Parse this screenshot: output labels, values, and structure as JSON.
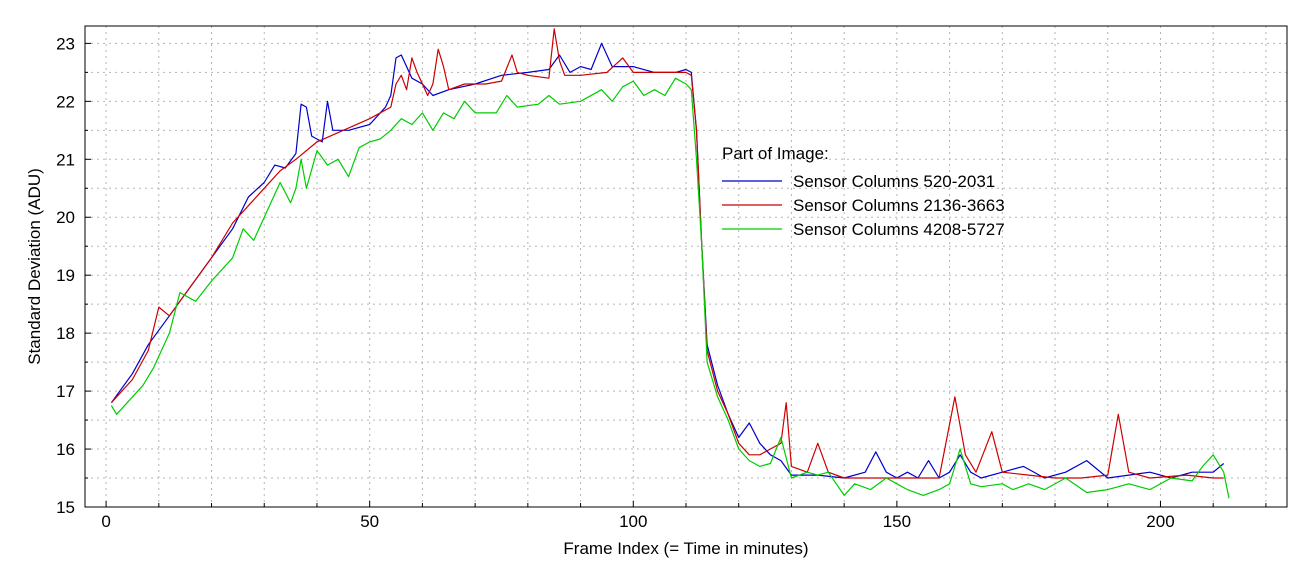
{
  "chart_data": {
    "type": "line",
    "title": "",
    "xlabel": "Frame Index (= Time in minutes)",
    "ylabel": "Standard Deviation (ADU)",
    "xlim": [
      -4,
      224
    ],
    "ylim": [
      15,
      23.3
    ],
    "xticks": [
      0,
      50,
      100,
      150,
      200
    ],
    "yticks": [
      15,
      16,
      17,
      18,
      19,
      20,
      21,
      22,
      23
    ],
    "grid": true,
    "legend": {
      "title": "Part of Image:",
      "placement": "center-right"
    },
    "series": [
      {
        "name": "Sensor Columns 520-2031",
        "color": "#0000cc",
        "points": [
          [
            1,
            16.8
          ],
          [
            5,
            17.3
          ],
          [
            8,
            17.8
          ],
          [
            12,
            18.3
          ],
          [
            16,
            18.8
          ],
          [
            20,
            19.3
          ],
          [
            24,
            19.8
          ],
          [
            27,
            20.35
          ],
          [
            30,
            20.6
          ],
          [
            32,
            20.9
          ],
          [
            34,
            20.85
          ],
          [
            36,
            21.1
          ],
          [
            37,
            21.95
          ],
          [
            38,
            21.9
          ],
          [
            39,
            21.4
          ],
          [
            41,
            21.3
          ],
          [
            42,
            22.0
          ],
          [
            43,
            21.5
          ],
          [
            46,
            21.5
          ],
          [
            50,
            21.6
          ],
          [
            53,
            21.9
          ],
          [
            54,
            22.1
          ],
          [
            55,
            22.75
          ],
          [
            56,
            22.8
          ],
          [
            58,
            22.4
          ],
          [
            60,
            22.3
          ],
          [
            62,
            22.1
          ],
          [
            65,
            22.2
          ],
          [
            70,
            22.3
          ],
          [
            75,
            22.45
          ],
          [
            80,
            22.5
          ],
          [
            84,
            22.55
          ],
          [
            86,
            22.8
          ],
          [
            88,
            22.5
          ],
          [
            90,
            22.6
          ],
          [
            92,
            22.55
          ],
          [
            94,
            23.0
          ],
          [
            96,
            22.6
          ],
          [
            100,
            22.6
          ],
          [
            104,
            22.5
          ],
          [
            108,
            22.5
          ],
          [
            110,
            22.55
          ],
          [
            111,
            22.5
          ],
          [
            112,
            21.5
          ],
          [
            113,
            19.5
          ],
          [
            114,
            17.8
          ],
          [
            116,
            17.1
          ],
          [
            118,
            16.6
          ],
          [
            120,
            16.2
          ],
          [
            122,
            16.45
          ],
          [
            124,
            16.1
          ],
          [
            126,
            15.9
          ],
          [
            128,
            15.8
          ],
          [
            130,
            15.55
          ],
          [
            135,
            15.55
          ],
          [
            140,
            15.5
          ],
          [
            144,
            15.6
          ],
          [
            146,
            15.95
          ],
          [
            148,
            15.6
          ],
          [
            150,
            15.5
          ],
          [
            152,
            15.6
          ],
          [
            154,
            15.5
          ],
          [
            156,
            15.8
          ],
          [
            158,
            15.5
          ],
          [
            160,
            15.6
          ],
          [
            162,
            15.9
          ],
          [
            164,
            15.6
          ],
          [
            166,
            15.5
          ],
          [
            170,
            15.6
          ],
          [
            174,
            15.7
          ],
          [
            178,
            15.5
          ],
          [
            182,
            15.6
          ],
          [
            186,
            15.8
          ],
          [
            190,
            15.5
          ],
          [
            194,
            15.55
          ],
          [
            198,
            15.6
          ],
          [
            202,
            15.5
          ],
          [
            206,
            15.6
          ],
          [
            210,
            15.6
          ],
          [
            212,
            15.75
          ]
        ]
      },
      {
        "name": "Sensor Columns 2136-3663",
        "color": "#cc0000",
        "points": [
          [
            1,
            16.8
          ],
          [
            5,
            17.2
          ],
          [
            8,
            17.7
          ],
          [
            10,
            18.45
          ],
          [
            12,
            18.3
          ],
          [
            16,
            18.8
          ],
          [
            20,
            19.3
          ],
          [
            24,
            19.9
          ],
          [
            27,
            20.2
          ],
          [
            30,
            20.5
          ],
          [
            33,
            20.8
          ],
          [
            36,
            21.0
          ],
          [
            40,
            21.3
          ],
          [
            45,
            21.5
          ],
          [
            50,
            21.7
          ],
          [
            54,
            21.9
          ],
          [
            55,
            22.3
          ],
          [
            56,
            22.45
          ],
          [
            57,
            22.2
          ],
          [
            58,
            22.75
          ],
          [
            59,
            22.5
          ],
          [
            61,
            22.1
          ],
          [
            62,
            22.3
          ],
          [
            63,
            22.9
          ],
          [
            64,
            22.6
          ],
          [
            65,
            22.2
          ],
          [
            68,
            22.3
          ],
          [
            72,
            22.3
          ],
          [
            75,
            22.35
          ],
          [
            77,
            22.8
          ],
          [
            78,
            22.5
          ],
          [
            80,
            22.45
          ],
          [
            84,
            22.4
          ],
          [
            85,
            23.25
          ],
          [
            86,
            22.7
          ],
          [
            87,
            22.45
          ],
          [
            90,
            22.45
          ],
          [
            95,
            22.5
          ],
          [
            98,
            22.75
          ],
          [
            100,
            22.5
          ],
          [
            105,
            22.5
          ],
          [
            110,
            22.5
          ],
          [
            111,
            22.45
          ],
          [
            112,
            21.5
          ],
          [
            113,
            19.5
          ],
          [
            114,
            17.7
          ],
          [
            116,
            17.0
          ],
          [
            118,
            16.6
          ],
          [
            120,
            16.1
          ],
          [
            122,
            15.9
          ],
          [
            124,
            15.9
          ],
          [
            126,
            16.0
          ],
          [
            128,
            16.1
          ],
          [
            129,
            16.8
          ],
          [
            130,
            15.7
          ],
          [
            133,
            15.6
          ],
          [
            135,
            16.1
          ],
          [
            137,
            15.6
          ],
          [
            140,
            15.5
          ],
          [
            145,
            15.5
          ],
          [
            150,
            15.5
          ],
          [
            155,
            15.5
          ],
          [
            158,
            15.5
          ],
          [
            161,
            16.9
          ],
          [
            163,
            15.9
          ],
          [
            165,
            15.6
          ],
          [
            168,
            16.3
          ],
          [
            170,
            15.6
          ],
          [
            175,
            15.55
          ],
          [
            180,
            15.5
          ],
          [
            185,
            15.5
          ],
          [
            190,
            15.55
          ],
          [
            192,
            16.6
          ],
          [
            194,
            15.6
          ],
          [
            198,
            15.5
          ],
          [
            205,
            15.55
          ],
          [
            210,
            15.5
          ],
          [
            212,
            15.5
          ]
        ]
      },
      {
        "name": "Sensor Columns 4208-5727",
        "color": "#00cc00",
        "points": [
          [
            1,
            16.75
          ],
          [
            2,
            16.6
          ],
          [
            4,
            16.8
          ],
          [
            7,
            17.1
          ],
          [
            9,
            17.4
          ],
          [
            12,
            18.0
          ],
          [
            14,
            18.7
          ],
          [
            17,
            18.55
          ],
          [
            20,
            18.9
          ],
          [
            24,
            19.3
          ],
          [
            26,
            19.8
          ],
          [
            28,
            19.6
          ],
          [
            31,
            20.2
          ],
          [
            33,
            20.6
          ],
          [
            35,
            20.25
          ],
          [
            36,
            20.5
          ],
          [
            37,
            21.0
          ],
          [
            38,
            20.5
          ],
          [
            40,
            21.15
          ],
          [
            42,
            20.9
          ],
          [
            44,
            21.0
          ],
          [
            46,
            20.7
          ],
          [
            48,
            21.2
          ],
          [
            50,
            21.3
          ],
          [
            52,
            21.35
          ],
          [
            54,
            21.5
          ],
          [
            56,
            21.7
          ],
          [
            58,
            21.6
          ],
          [
            60,
            21.8
          ],
          [
            62,
            21.5
          ],
          [
            64,
            21.8
          ],
          [
            66,
            21.7
          ],
          [
            68,
            22.0
          ],
          [
            70,
            21.8
          ],
          [
            74,
            21.8
          ],
          [
            76,
            22.1
          ],
          [
            78,
            21.9
          ],
          [
            82,
            21.95
          ],
          [
            84,
            22.1
          ],
          [
            86,
            21.95
          ],
          [
            90,
            22.0
          ],
          [
            94,
            22.2
          ],
          [
            96,
            22.0
          ],
          [
            98,
            22.25
          ],
          [
            100,
            22.35
          ],
          [
            102,
            22.1
          ],
          [
            104,
            22.2
          ],
          [
            106,
            22.1
          ],
          [
            108,
            22.4
          ],
          [
            110,
            22.3
          ],
          [
            111,
            22.2
          ],
          [
            112,
            21.0
          ],
          [
            113,
            19.5
          ],
          [
            114,
            17.5
          ],
          [
            116,
            16.9
          ],
          [
            118,
            16.5
          ],
          [
            120,
            16.0
          ],
          [
            122,
            15.8
          ],
          [
            124,
            15.7
          ],
          [
            126,
            15.75
          ],
          [
            128,
            16.2
          ],
          [
            130,
            15.5
          ],
          [
            133,
            15.6
          ],
          [
            135,
            15.55
          ],
          [
            137,
            15.6
          ],
          [
            140,
            15.2
          ],
          [
            142,
            15.4
          ],
          [
            145,
            15.3
          ],
          [
            148,
            15.5
          ],
          [
            150,
            15.4
          ],
          [
            152,
            15.3
          ],
          [
            155,
            15.2
          ],
          [
            158,
            15.3
          ],
          [
            160,
            15.4
          ],
          [
            162,
            16.0
          ],
          [
            164,
            15.4
          ],
          [
            166,
            15.35
          ],
          [
            170,
            15.4
          ],
          [
            172,
            15.3
          ],
          [
            175,
            15.4
          ],
          [
            178,
            15.3
          ],
          [
            182,
            15.5
          ],
          [
            186,
            15.25
          ],
          [
            190,
            15.3
          ],
          [
            194,
            15.4
          ],
          [
            198,
            15.3
          ],
          [
            202,
            15.5
          ],
          [
            206,
            15.45
          ],
          [
            208,
            15.7
          ],
          [
            210,
            15.9
          ],
          [
            212,
            15.6
          ],
          [
            213,
            15.15
          ]
        ]
      }
    ]
  }
}
